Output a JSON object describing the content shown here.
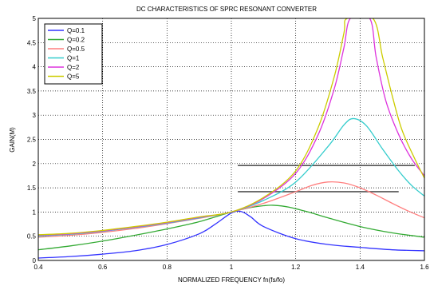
{
  "chart_data": {
    "type": "line",
    "title": "DC CHARACTERISTICS OF SPRC RESONANT CONVERTER",
    "xlabel": "NORMALIZED FREQUENCY fn(fs/fo)",
    "ylabel": "GAIN(M)",
    "xlim": [
      0.4,
      1.6
    ],
    "ylim": [
      0,
      5
    ],
    "xticks": [
      "0.4",
      "0.6",
      "0.8",
      "1",
      "1.2",
      "1.4",
      "1.6"
    ],
    "xtick_values": [
      0.4,
      0.6,
      0.8,
      1.0,
      1.2,
      1.4,
      1.6
    ],
    "yticks": [
      "0",
      "0.5",
      "1",
      "1.5",
      "2",
      "2.5",
      "3",
      "3.5",
      "4",
      "4.5",
      "5"
    ],
    "ytick_values": [
      0,
      0.5,
      1,
      1.5,
      2,
      2.5,
      3,
      3.5,
      4,
      4.5,
      5
    ],
    "grid": true,
    "legend_position": "top-left",
    "series": [
      {
        "name": "Q=0.1",
        "color": "#3333ff",
        "x": [
          0.4,
          0.5,
          0.6,
          0.7,
          0.8,
          0.9,
          0.95,
          1.0,
          1.03,
          1.06,
          1.1,
          1.2,
          1.3,
          1.4,
          1.5,
          1.6
        ],
        "y": [
          0.05,
          0.08,
          0.13,
          0.2,
          0.33,
          0.55,
          0.75,
          0.98,
          1.01,
          0.9,
          0.7,
          0.45,
          0.33,
          0.27,
          0.22,
          0.2
        ]
      },
      {
        "name": "Q=0.2",
        "color": "#33aa33",
        "x": [
          0.4,
          0.5,
          0.6,
          0.7,
          0.8,
          0.9,
          1.0,
          1.05,
          1.1,
          1.13,
          1.18,
          1.25,
          1.3,
          1.4,
          1.5,
          1.6
        ],
        "y": [
          0.22,
          0.3,
          0.4,
          0.52,
          0.65,
          0.8,
          1.0,
          1.08,
          1.13,
          1.14,
          1.1,
          0.98,
          0.88,
          0.7,
          0.57,
          0.48
        ]
      },
      {
        "name": "Q=0.5",
        "color": "#ff7f7f",
        "x": [
          0.4,
          0.5,
          0.6,
          0.7,
          0.8,
          0.9,
          1.0,
          1.1,
          1.2,
          1.25,
          1.3,
          1.35,
          1.4,
          1.45,
          1.5,
          1.55,
          1.6
        ],
        "y": [
          0.48,
          0.52,
          0.58,
          0.66,
          0.76,
          0.87,
          1.0,
          1.18,
          1.42,
          1.55,
          1.62,
          1.6,
          1.5,
          1.35,
          1.18,
          1.02,
          0.88
        ]
      },
      {
        "name": "Q=1",
        "color": "#33cccc",
        "x": [
          0.4,
          0.5,
          0.6,
          0.7,
          0.8,
          0.9,
          1.0,
          1.1,
          1.2,
          1.3,
          1.35,
          1.38,
          1.42,
          1.47,
          1.52,
          1.56,
          1.6
        ],
        "y": [
          0.5,
          0.54,
          0.6,
          0.68,
          0.77,
          0.88,
          1.0,
          1.24,
          1.62,
          2.35,
          2.8,
          2.93,
          2.78,
          2.3,
          1.85,
          1.55,
          1.33
        ]
      },
      {
        "name": "Q=2",
        "color": "#dd33dd",
        "x": [
          0.4,
          0.5,
          0.6,
          0.7,
          0.8,
          0.9,
          1.0,
          1.1,
          1.2,
          1.27,
          1.32,
          1.35,
          1.37,
          1.43,
          1.45,
          1.48,
          1.52,
          1.56,
          1.6
        ],
        "y": [
          0.52,
          0.55,
          0.61,
          0.69,
          0.78,
          0.89,
          1.0,
          1.28,
          1.8,
          2.6,
          3.55,
          4.4,
          5.0,
          5.0,
          4.2,
          3.3,
          2.6,
          2.1,
          1.75
        ]
      },
      {
        "name": "Q=5",
        "color": "#cccc00",
        "x": [
          0.4,
          0.5,
          0.6,
          0.7,
          0.8,
          0.9,
          1.0,
          1.1,
          1.2,
          1.27,
          1.32,
          1.35,
          1.36,
          1.44,
          1.47,
          1.5,
          1.53,
          1.57,
          1.6
        ],
        "y": [
          0.53,
          0.56,
          0.62,
          0.7,
          0.79,
          0.9,
          1.0,
          1.3,
          1.85,
          2.75,
          3.8,
          4.7,
          5.0,
          5.0,
          4.2,
          3.4,
          2.7,
          2.1,
          1.7
        ]
      }
    ],
    "annotations": [
      {
        "type": "hline",
        "y": 1.96,
        "x": [
          1.02,
          1.57
        ],
        "color": "#555555"
      },
      {
        "type": "hline",
        "y": 1.42,
        "x": [
          1.02,
          1.52
        ],
        "color": "#555555"
      }
    ]
  }
}
